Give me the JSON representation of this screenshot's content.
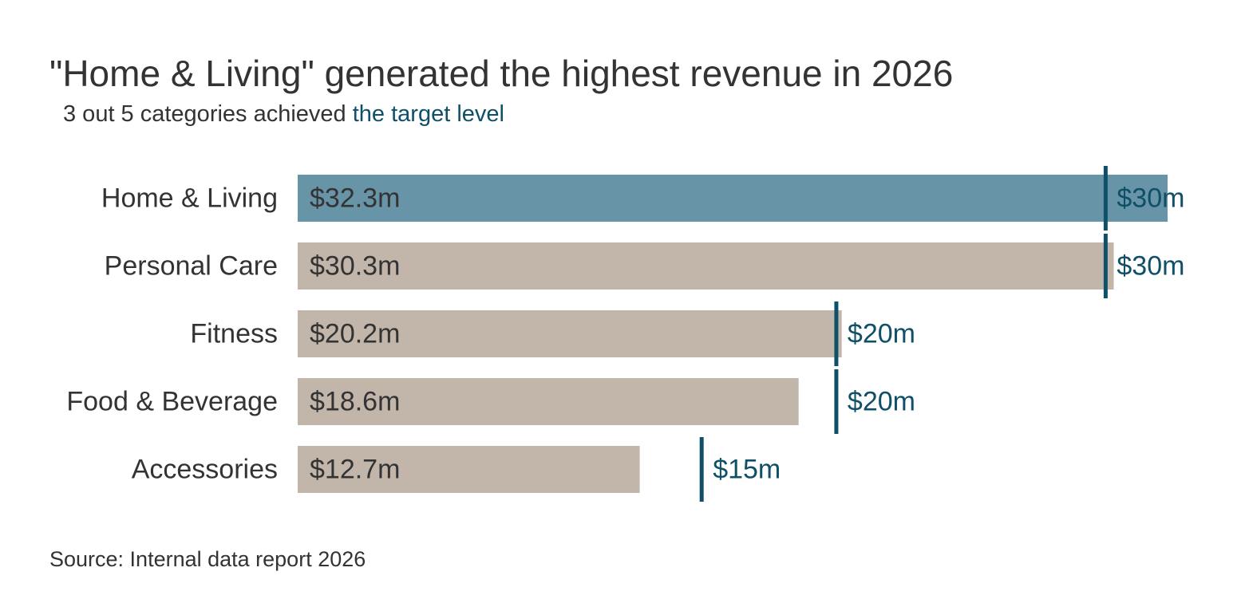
{
  "header": {
    "title": "\"Home & Living\" generated the highest revenue in 2026",
    "subtitle_prefix": "3 out 5 categories achieved ",
    "subtitle_highlight": "the target level"
  },
  "footer": {
    "source": "Source: Internal data report 2026"
  },
  "colors": {
    "highlight_bar": "#6794a7",
    "bar": "#c2b6aa",
    "target": "#0f5068",
    "text": "#333333"
  },
  "chart_data": {
    "type": "bar",
    "orientation": "horizontal",
    "categories": [
      "Home & Living",
      "Personal Care",
      "Fitness",
      "Food & Beverage",
      "Accessories"
    ],
    "values": [
      32.3,
      30.3,
      20.2,
      18.6,
      12.7
    ],
    "value_labels": [
      "$32.3m",
      "$30.3m",
      "$20.2m",
      "$18.6m",
      "$12.7m"
    ],
    "targets": [
      30,
      30,
      20,
      20,
      15
    ],
    "target_labels": [
      "$30m",
      "$30m",
      "$20m",
      "$20m",
      "$15m"
    ],
    "highlight_index": 0,
    "xlim": [
      0,
      32.3
    ],
    "grid": false,
    "legend": "none"
  }
}
